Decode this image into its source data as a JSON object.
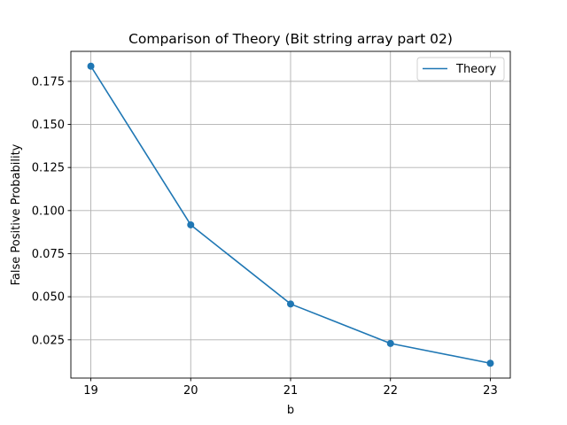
{
  "chart_data": {
    "type": "line",
    "title": "Comparison of Theory (Bit string array part 02)",
    "xlabel": "b",
    "ylabel": "False Positive Probability",
    "x": [
      19,
      20,
      21,
      22,
      23
    ],
    "series": [
      {
        "name": "Theory",
        "values": [
          0.1838,
          0.0917,
          0.0458,
          0.0229,
          0.0114
        ],
        "color": "#1f77b4",
        "markers": true
      }
    ],
    "x_ticks": [
      19,
      20,
      21,
      22,
      23
    ],
    "x_tick_labels": [
      "19",
      "20",
      "21",
      "22",
      "23"
    ],
    "y_ticks": [
      0.025,
      0.05,
      0.075,
      0.1,
      0.125,
      0.15,
      0.175
    ],
    "y_tick_labels": [
      "0.025",
      "0.050",
      "0.075",
      "0.100",
      "0.125",
      "0.150",
      "0.175"
    ],
    "xlim": [
      18.8,
      23.2
    ],
    "ylim": [
      0.0028,
      0.1924
    ],
    "grid": true,
    "legend_position": "top-right"
  }
}
